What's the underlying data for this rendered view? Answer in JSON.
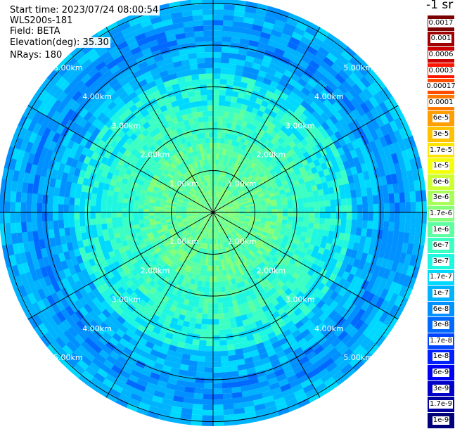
{
  "header": {
    "start_time": "Start time: 2023/07/24 08:00:54",
    "instrument": "WLS200s-181",
    "field": "Field: BETA",
    "elevation": "Elevation(deg): 35.30",
    "nrays": "NRays: 180"
  },
  "unit_label": "-1 sr",
  "colorbar": {
    "labels": [
      "0.0017",
      "0.001",
      "0.0006",
      "0.0003",
      "0.00017",
      "0.0001",
      "6e-5",
      "3e-5",
      "1.7e-5",
      "1e-5",
      "6e-6",
      "3e-6",
      "1.7e-6",
      "1e-6",
      "6e-7",
      "3e-7",
      "1.7e-7",
      "1e-7",
      "6e-8",
      "3e-8",
      "1.7e-8",
      "1e-8",
      "6e-9",
      "3e-9",
      "1.7e-9",
      "1e-9"
    ],
    "colors": [
      "#7a0000",
      "#a00000",
      "#cc0000",
      "#ff1500",
      "#ff4e00",
      "#ff7a00",
      "#ff9e00",
      "#ffc200",
      "#ffe400",
      "#f4ff0c",
      "#cdff32",
      "#a8ff57",
      "#86ff79",
      "#5effa1",
      "#3cffc3",
      "#1ff7e0",
      "#00d9ff",
      "#00b3ff",
      "#0090ff",
      "#0069ff",
      "#0046ff",
      "#0020ff",
      "#0000f2",
      "#0000c8",
      "#00009e",
      "#000078"
    ]
  },
  "chart_data": {
    "type": "heatmap",
    "projection": "polar",
    "field": "BETA",
    "elevation_deg": 35.3,
    "n_rays": 180,
    "range_rings_km": [
      1,
      2,
      3,
      4,
      5
    ],
    "ring_labels": [
      "1.00km",
      "2.00km",
      "3.00km",
      "4.00km",
      "5.00km"
    ],
    "radial_lines_deg": [
      0,
      30,
      60,
      90,
      120,
      150,
      180,
      210,
      240,
      270,
      300,
      330
    ],
    "max_range_km": 5.0,
    "description_values": {
      "0-0.6km": "1.7e-6",
      "0.6-1.6km": "1e-6",
      "1.6-3.2km": "6e-7",
      "3.2-4.6km": "1.7e-7",
      "4.6-5.0km": "3e-8"
    }
  }
}
